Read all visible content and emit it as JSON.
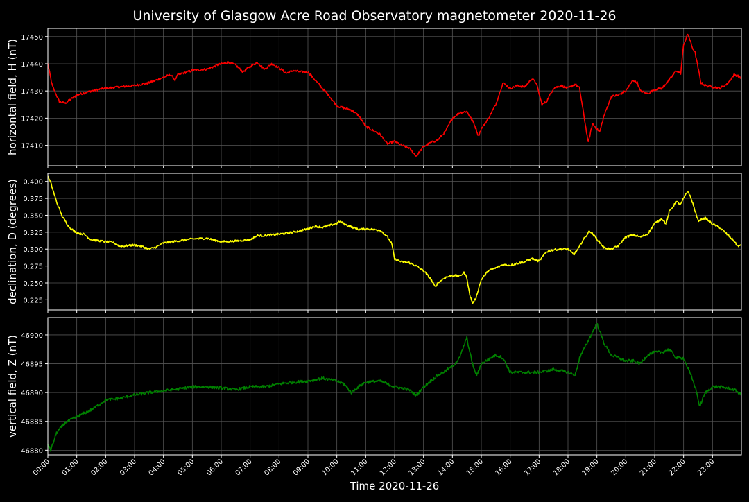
{
  "chart_data": {
    "type": "line",
    "title": "University of Glasgow Acre Road Observatory magnetometer 2020-11-26",
    "xlabel": "Time 2020-11-26",
    "x_tick_labels": [
      "00:00",
      "01:00",
      "02:00",
      "03:00",
      "04:00",
      "05:00",
      "06:00",
      "07:00",
      "08:00",
      "09:00",
      "10:00",
      "11:00",
      "12:00",
      "13:00",
      "14:00",
      "15:00",
      "16:00",
      "17:00",
      "18:00",
      "19:00",
      "20:00",
      "21:00",
      "22:00",
      "23:00"
    ],
    "xlim": [
      0,
      24
    ],
    "grid": true,
    "panels": [
      {
        "ylabel": "horizontal field, H (nT)",
        "ylim": [
          17402.5,
          17453
        ],
        "yticks": [
          17410,
          17420,
          17430,
          17440,
          17450
        ],
        "ytick_labels": [
          "17410",
          "17420",
          "17430",
          "17440",
          "17450"
        ],
        "color": "#ff0000",
        "noise": 0.4,
        "points": [
          [
            0,
            17440
          ],
          [
            0.15,
            17432
          ],
          [
            0.4,
            17426
          ],
          [
            0.6,
            17425.5
          ],
          [
            1,
            17428.5
          ],
          [
            1.5,
            17430
          ],
          [
            2,
            17431
          ],
          [
            2.5,
            17431.5
          ],
          [
            3,
            17432
          ],
          [
            3.5,
            17433
          ],
          [
            4,
            17435
          ],
          [
            4.25,
            17436
          ],
          [
            4.4,
            17434
          ],
          [
            4.5,
            17436
          ],
          [
            5,
            17437.5
          ],
          [
            5.5,
            17438
          ],
          [
            6,
            17440
          ],
          [
            6.25,
            17440.5
          ],
          [
            6.5,
            17439.5
          ],
          [
            6.75,
            17437
          ],
          [
            7,
            17439
          ],
          [
            7.25,
            17440.5
          ],
          [
            7.5,
            17438
          ],
          [
            7.75,
            17440
          ],
          [
            8,
            17438.5
          ],
          [
            8.25,
            17436.5
          ],
          [
            8.5,
            17437.5
          ],
          [
            8.75,
            17437
          ],
          [
            9,
            17437
          ],
          [
            9.25,
            17434
          ],
          [
            9.5,
            17431
          ],
          [
            9.75,
            17428
          ],
          [
            10,
            17424.5
          ],
          [
            10.5,
            17423
          ],
          [
            10.75,
            17421
          ],
          [
            11,
            17417
          ],
          [
            11.25,
            17415.5
          ],
          [
            11.5,
            17414
          ],
          [
            11.75,
            17410.5
          ],
          [
            12,
            17411.5
          ],
          [
            12.25,
            17410
          ],
          [
            12.5,
            17409
          ],
          [
            12.75,
            17406
          ],
          [
            13,
            17409.5
          ],
          [
            13.25,
            17411
          ],
          [
            13.5,
            17412
          ],
          [
            13.75,
            17415
          ],
          [
            14,
            17420
          ],
          [
            14.25,
            17422
          ],
          [
            14.5,
            17422.5
          ],
          [
            14.75,
            17418
          ],
          [
            14.9,
            17413.5
          ],
          [
            15,
            17416
          ],
          [
            15.25,
            17420
          ],
          [
            15.5,
            17425
          ],
          [
            15.75,
            17433
          ],
          [
            16,
            17431
          ],
          [
            16.25,
            17432
          ],
          [
            16.5,
            17431.5
          ],
          [
            16.75,
            17434.5
          ],
          [
            16.9,
            17433
          ],
          [
            17.1,
            17425
          ],
          [
            17.25,
            17426
          ],
          [
            17.5,
            17431
          ],
          [
            17.75,
            17432
          ],
          [
            18,
            17431
          ],
          [
            18.25,
            17432.5
          ],
          [
            18.4,
            17431
          ],
          [
            18.55,
            17421
          ],
          [
            18.7,
            17411
          ],
          [
            18.85,
            17418
          ],
          [
            19,
            17416
          ],
          [
            19.1,
            17415
          ],
          [
            19.25,
            17421
          ],
          [
            19.5,
            17428
          ],
          [
            19.75,
            17428.5
          ],
          [
            20,
            17430
          ],
          [
            20.25,
            17434
          ],
          [
            20.4,
            17433
          ],
          [
            20.5,
            17430
          ],
          [
            20.75,
            17429
          ],
          [
            21,
            17430.5
          ],
          [
            21.25,
            17431
          ],
          [
            21.5,
            17434
          ],
          [
            21.75,
            17437.5
          ],
          [
            21.9,
            17436.5
          ],
          [
            22,
            17447
          ],
          [
            22.15,
            17451
          ],
          [
            22.3,
            17446
          ],
          [
            22.4,
            17444
          ],
          [
            22.6,
            17433
          ],
          [
            22.75,
            17432
          ],
          [
            23,
            17431.5
          ],
          [
            23.25,
            17431
          ],
          [
            23.5,
            17432.5
          ],
          [
            23.75,
            17436
          ],
          [
            23.9,
            17435.5
          ],
          [
            24,
            17434.5
          ]
        ]
      },
      {
        "ylabel": "declination, D (degrees)",
        "ylim": [
          0.21,
          0.412
        ],
        "yticks": [
          0.225,
          0.25,
          0.275,
          0.3,
          0.325,
          0.35,
          0.375,
          0.4
        ],
        "ytick_labels": [
          "0.225",
          "0.250",
          "0.275",
          "0.300",
          "0.325",
          "0.350",
          "0.375",
          "0.400"
        ],
        "color": "#ffff00",
        "noise": 0.0015,
        "points": [
          [
            0,
            0.408
          ],
          [
            0.1,
            0.398
          ],
          [
            0.3,
            0.37
          ],
          [
            0.5,
            0.348
          ],
          [
            0.75,
            0.332
          ],
          [
            1,
            0.324
          ],
          [
            1.25,
            0.322
          ],
          [
            1.5,
            0.314
          ],
          [
            2,
            0.311
          ],
          [
            2.25,
            0.31
          ],
          [
            2.5,
            0.304
          ],
          [
            3,
            0.306
          ],
          [
            3.25,
            0.304
          ],
          [
            3.5,
            0.3
          ],
          [
            3.75,
            0.303
          ],
          [
            4,
            0.309
          ],
          [
            4.5,
            0.312
          ],
          [
            5,
            0.315
          ],
          [
            5.5,
            0.316
          ],
          [
            6,
            0.311
          ],
          [
            6.5,
            0.312
          ],
          [
            7,
            0.314
          ],
          [
            7.25,
            0.32
          ],
          [
            7.5,
            0.32
          ],
          [
            8,
            0.322
          ],
          [
            8.5,
            0.325
          ],
          [
            9,
            0.33
          ],
          [
            9.25,
            0.334
          ],
          [
            9.5,
            0.332
          ],
          [
            9.75,
            0.335
          ],
          [
            10,
            0.338
          ],
          [
            10.1,
            0.341
          ],
          [
            10.3,
            0.336
          ],
          [
            10.5,
            0.333
          ],
          [
            10.75,
            0.329
          ],
          [
            11,
            0.33
          ],
          [
            11.5,
            0.328
          ],
          [
            11.75,
            0.318
          ],
          [
            11.9,
            0.308
          ],
          [
            12,
            0.285
          ],
          [
            12.25,
            0.281
          ],
          [
            12.5,
            0.28
          ],
          [
            12.75,
            0.275
          ],
          [
            13,
            0.268
          ],
          [
            13.25,
            0.256
          ],
          [
            13.4,
            0.244
          ],
          [
            13.5,
            0.25
          ],
          [
            13.75,
            0.258
          ],
          [
            14,
            0.261
          ],
          [
            14.25,
            0.26
          ],
          [
            14.4,
            0.265
          ],
          [
            14.5,
            0.258
          ],
          [
            14.6,
            0.232
          ],
          [
            14.7,
            0.22
          ],
          [
            14.8,
            0.226
          ],
          [
            15,
            0.255
          ],
          [
            15.25,
            0.268
          ],
          [
            15.5,
            0.272
          ],
          [
            15.75,
            0.277
          ],
          [
            16,
            0.276
          ],
          [
            16.25,
            0.279
          ],
          [
            16.5,
            0.281
          ],
          [
            16.75,
            0.286
          ],
          [
            17,
            0.282
          ],
          [
            17.25,
            0.296
          ],
          [
            17.5,
            0.299
          ],
          [
            17.75,
            0.3
          ],
          [
            18,
            0.3
          ],
          [
            18.2,
            0.292
          ],
          [
            18.35,
            0.3
          ],
          [
            18.5,
            0.312
          ],
          [
            18.75,
            0.327
          ],
          [
            18.9,
            0.32
          ],
          [
            19.25,
            0.302
          ],
          [
            19.5,
            0.3
          ],
          [
            19.75,
            0.305
          ],
          [
            20,
            0.318
          ],
          [
            20.25,
            0.321
          ],
          [
            20.5,
            0.318
          ],
          [
            20.75,
            0.322
          ],
          [
            21,
            0.338
          ],
          [
            21.25,
            0.345
          ],
          [
            21.4,
            0.337
          ],
          [
            21.5,
            0.355
          ],
          [
            21.75,
            0.37
          ],
          [
            21.9,
            0.366
          ],
          [
            22,
            0.375
          ],
          [
            22.15,
            0.386
          ],
          [
            22.3,
            0.37
          ],
          [
            22.5,
            0.342
          ],
          [
            22.75,
            0.346
          ],
          [
            23,
            0.337
          ],
          [
            23.25,
            0.332
          ],
          [
            23.5,
            0.322
          ],
          [
            23.75,
            0.312
          ],
          [
            23.85,
            0.305
          ],
          [
            24,
            0.305
          ]
        ]
      },
      {
        "ylabel": "vertical field, Z (nT)",
        "ylim": [
          46879.2,
          46903
        ],
        "yticks": [
          46880,
          46885,
          46890,
          46895,
          46900
        ],
        "ytick_labels": [
          "46880",
          "46885",
          "46890",
          "46895",
          "46900"
        ],
        "color": "#008000",
        "noise": 0.25,
        "points": [
          [
            0,
            46881
          ],
          [
            0.1,
            46880
          ],
          [
            0.3,
            46883
          ],
          [
            0.6,
            46884.8
          ],
          [
            1,
            46885.8
          ],
          [
            1.5,
            46887
          ],
          [
            2,
            46888.7
          ],
          [
            2.5,
            46889
          ],
          [
            3,
            46889.6
          ],
          [
            3.5,
            46890
          ],
          [
            4,
            46890.3
          ],
          [
            4.5,
            46890.6
          ],
          [
            5,
            46891
          ],
          [
            5.5,
            46891
          ],
          [
            6,
            46890.8
          ],
          [
            6.5,
            46890.5
          ],
          [
            7,
            46891
          ],
          [
            7.5,
            46891
          ],
          [
            8,
            46891.5
          ],
          [
            8.5,
            46891.8
          ],
          [
            9,
            46892
          ],
          [
            9.5,
            46892.5
          ],
          [
            10,
            46892
          ],
          [
            10.25,
            46891.5
          ],
          [
            10.5,
            46890
          ],
          [
            10.75,
            46891
          ],
          [
            11,
            46891.8
          ],
          [
            11.5,
            46892
          ],
          [
            12,
            46891
          ],
          [
            12.5,
            46890.5
          ],
          [
            12.75,
            46889.5
          ],
          [
            13,
            46891
          ],
          [
            13.25,
            46892
          ],
          [
            13.5,
            46893
          ],
          [
            14,
            46894.5
          ],
          [
            14.25,
            46896
          ],
          [
            14.5,
            46899.5
          ],
          [
            14.6,
            46897
          ],
          [
            14.75,
            46894
          ],
          [
            14.85,
            46893
          ],
          [
            15,
            46895
          ],
          [
            15.5,
            46896.5
          ],
          [
            15.75,
            46896
          ],
          [
            16,
            46893.5
          ],
          [
            16.5,
            46893.5
          ],
          [
            17,
            46893.5
          ],
          [
            17.5,
            46894
          ],
          [
            18,
            46893.5
          ],
          [
            18.25,
            46893
          ],
          [
            18.4,
            46896
          ],
          [
            18.75,
            46899.5
          ],
          [
            19,
            46902
          ],
          [
            19.25,
            46898.5
          ],
          [
            19.5,
            46896.5
          ],
          [
            19.75,
            46896
          ],
          [
            20,
            46895.5
          ],
          [
            20.25,
            46895.5
          ],
          [
            20.5,
            46895
          ],
          [
            20.75,
            46896.5
          ],
          [
            21,
            46897
          ],
          [
            21.25,
            46897
          ],
          [
            21.5,
            46897.5
          ],
          [
            21.75,
            46896
          ],
          [
            22,
            46896
          ],
          [
            22.25,
            46893
          ],
          [
            22.4,
            46891
          ],
          [
            22.5,
            46889
          ],
          [
            22.55,
            46887.5
          ],
          [
            22.75,
            46890
          ],
          [
            23,
            46891
          ],
          [
            23.25,
            46891
          ],
          [
            23.5,
            46890.8
          ],
          [
            23.75,
            46890.5
          ],
          [
            23.9,
            46890
          ],
          [
            24,
            46889.5
          ]
        ]
      }
    ]
  }
}
